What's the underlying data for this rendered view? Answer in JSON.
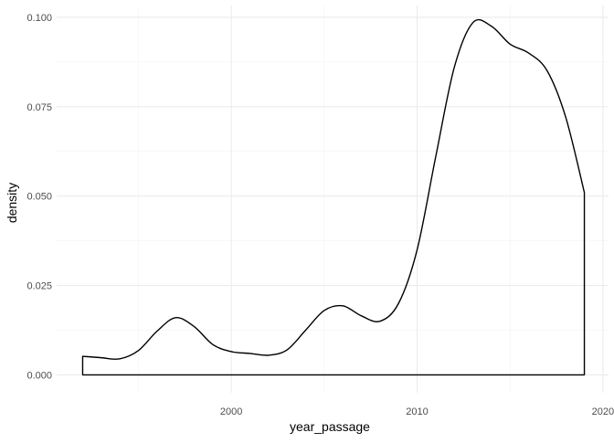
{
  "chart_data": {
    "type": "area",
    "style": "density outline (no fill), minimal theme",
    "title": "",
    "xlabel": "year_passage",
    "ylabel": "density",
    "xlim": [
      1990.6,
      2020.3
    ],
    "ylim": [
      -0.005,
      0.1033
    ],
    "x_ticks": [
      2000,
      2010,
      2020
    ],
    "x_tick_labels": [
      "2000",
      "2010",
      "2020"
    ],
    "y_ticks": [
      0,
      0.025,
      0.05,
      0.075,
      0.1
    ],
    "y_tick_labels": [
      "0.000",
      "0.025",
      "0.050",
      "0.075",
      "0.100"
    ],
    "grid": true,
    "legend": "none",
    "line_color": "#000000",
    "series": [
      {
        "x": [
          1992,
          1993,
          1994,
          1995,
          1996,
          1997,
          1998,
          1999,
          2000,
          2001,
          2002,
          2003,
          2004,
          2005,
          2006,
          2007,
          2008,
          2009,
          2010,
          2011,
          2012,
          2013,
          2014,
          2015,
          2016,
          2017,
          2018,
          2019
        ],
        "values": [
          0.0052,
          0.0048,
          0.0045,
          0.0068,
          0.0122,
          0.016,
          0.0135,
          0.0085,
          0.0065,
          0.006,
          0.0055,
          0.007,
          0.0125,
          0.018,
          0.0193,
          0.0165,
          0.015,
          0.02,
          0.035,
          0.061,
          0.086,
          0.0985,
          0.0975,
          0.0925,
          0.09,
          0.085,
          0.072,
          0.051
        ]
      }
    ]
  }
}
